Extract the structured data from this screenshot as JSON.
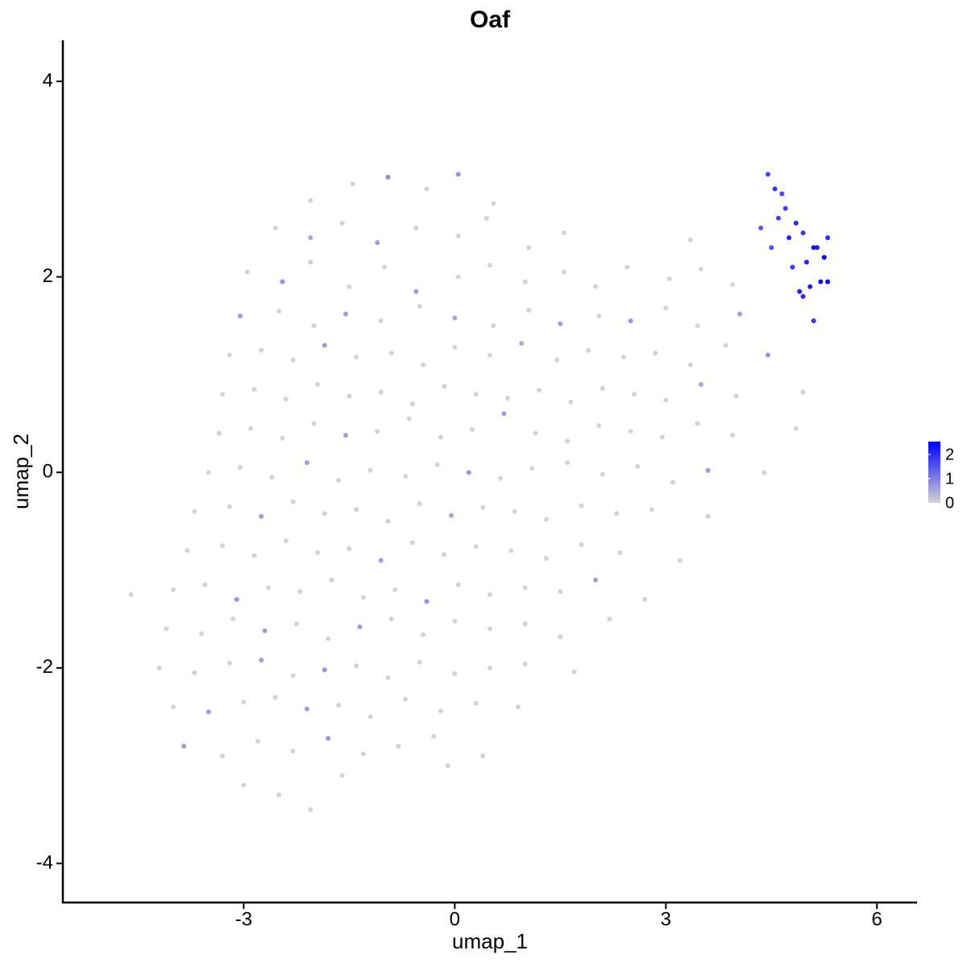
{
  "chart_data": {
    "type": "scatter",
    "title": "Oaf",
    "x_label": "umap_1",
    "y_label": "umap_2",
    "xlim": [
      -5.57,
      6.57
    ],
    "ylim": [
      -4.4,
      4.42
    ],
    "xticks": [
      -3,
      0,
      3,
      6
    ],
    "yticks": [
      -4,
      -2,
      0,
      2,
      4
    ],
    "colors": [
      "#d3d3d3",
      "#0000ff"
    ],
    "color_lim": [
      0,
      2.4
    ],
    "color_ticks": [
      0,
      1,
      2
    ],
    "x": [
      -2.05,
      -1.45,
      -0.95,
      -0.4,
      0.05,
      0.55,
      -2.55,
      -2.05,
      -1.6,
      -1.1,
      -0.55,
      0.05,
      0.45,
      1.05,
      1.55,
      3.35,
      -2.95,
      -2.45,
      -2.05,
      -1.5,
      -1.0,
      -0.55,
      0.05,
      0.5,
      1.0,
      1.55,
      2.0,
      2.45,
      3.05,
      3.5,
      3.95,
      -3.05,
      -2.5,
      -2.0,
      -1.55,
      -1.05,
      -0.5,
      0.0,
      0.55,
      1.05,
      1.5,
      2.05,
      2.5,
      3.0,
      3.45,
      4.05,
      -3.2,
      -2.75,
      -2.3,
      -1.85,
      -1.4,
      -0.9,
      -0.45,
      0.0,
      0.5,
      0.95,
      1.45,
      1.9,
      2.4,
      2.85,
      3.35,
      3.85,
      4.45,
      -3.3,
      -2.85,
      -2.4,
      -1.95,
      -1.5,
      -1.05,
      -0.6,
      -0.15,
      0.3,
      0.75,
      1.2,
      1.65,
      2.1,
      2.55,
      3.0,
      3.5,
      4.0,
      4.95,
      -3.35,
      -2.9,
      -2.45,
      -2.0,
      -1.55,
      -1.1,
      -0.65,
      -0.2,
      0.25,
      0.7,
      1.15,
      1.6,
      2.05,
      2.5,
      2.95,
      3.45,
      3.95,
      4.85,
      -3.5,
      -3.05,
      -2.6,
      -2.1,
      -1.65,
      -1.2,
      -0.7,
      -0.25,
      0.2,
      0.65,
      1.1,
      1.6,
      2.1,
      2.6,
      3.1,
      3.6,
      4.4,
      -3.7,
      -3.2,
      -2.75,
      -2.3,
      -1.85,
      -1.4,
      -0.95,
      -0.5,
      -0.05,
      0.4,
      0.85,
      1.3,
      1.8,
      2.3,
      2.8,
      3.6,
      -3.8,
      -3.3,
      -2.85,
      -2.4,
      -1.95,
      -1.5,
      -1.05,
      -0.6,
      -0.15,
      0.3,
      0.8,
      1.3,
      1.8,
      2.35,
      3.2,
      -4.6,
      -4.0,
      -3.55,
      -3.1,
      -2.65,
      -2.2,
      -1.75,
      -1.3,
      -0.85,
      -0.4,
      0.05,
      0.5,
      1.0,
      1.5,
      2.0,
      2.7,
      -4.1,
      -3.6,
      -3.15,
      -2.7,
      -2.25,
      -1.8,
      -1.35,
      -0.9,
      -0.45,
      0.0,
      0.5,
      1.0,
      1.5,
      2.2,
      -4.2,
      -3.7,
      -3.2,
      -2.75,
      -2.3,
      -1.85,
      -1.4,
      -0.95,
      -0.5,
      0.0,
      0.5,
      1.0,
      1.7,
      -4.0,
      -3.5,
      -3.0,
      -2.55,
      -2.1,
      -1.65,
      -1.2,
      -0.7,
      -0.2,
      0.3,
      0.9,
      -3.85,
      -3.3,
      -2.8,
      -2.3,
      -1.8,
      -1.3,
      -0.8,
      -0.3,
      0.4,
      -3.0,
      -2.5,
      -2.05,
      -1.6,
      -0.1,
      4.45,
      4.55,
      4.7,
      4.85,
      4.6,
      4.75,
      4.95,
      5.1,
      5.25,
      5.3,
      5.2,
      5.05,
      4.9,
      4.95,
      5.1,
      5.3,
      4.5,
      4.35,
      4.8,
      5.0,
      5.15,
      4.65
    ],
    "y": [
      2.78,
      2.95,
      3.02,
      2.9,
      3.05,
      2.75,
      2.5,
      2.4,
      2.55,
      2.35,
      2.5,
      2.42,
      2.6,
      2.3,
      2.45,
      2.38,
      2.05,
      1.95,
      2.15,
      1.9,
      2.1,
      1.85,
      2.0,
      2.12,
      1.95,
      2.05,
      1.9,
      2.1,
      1.98,
      2.08,
      1.92,
      1.6,
      1.65,
      1.5,
      1.62,
      1.55,
      1.7,
      1.58,
      1.5,
      1.66,
      1.52,
      1.6,
      1.55,
      1.68,
      1.5,
      1.62,
      1.2,
      1.25,
      1.15,
      1.3,
      1.18,
      1.22,
      1.1,
      1.28,
      1.2,
      1.32,
      1.15,
      1.25,
      1.18,
      1.22,
      1.1,
      1.3,
      1.2,
      0.8,
      0.85,
      0.75,
      0.9,
      0.78,
      0.82,
      0.7,
      0.88,
      0.8,
      0.76,
      0.84,
      0.72,
      0.86,
      0.8,
      0.74,
      0.9,
      0.78,
      0.82,
      0.4,
      0.45,
      0.35,
      0.5,
      0.38,
      0.42,
      0.55,
      0.36,
      0.44,
      0.6,
      0.4,
      0.32,
      0.48,
      0.42,
      0.36,
      0.5,
      0.38,
      0.45,
      0.0,
      0.05,
      -0.05,
      0.1,
      -0.08,
      0.02,
      -0.04,
      0.08,
      0.0,
      -0.06,
      0.04,
      0.1,
      -0.02,
      0.06,
      -0.1,
      0.02,
      0.0,
      -0.4,
      -0.35,
      -0.45,
      -0.3,
      -0.42,
      -0.38,
      -0.5,
      -0.32,
      -0.44,
      -0.36,
      -0.4,
      -0.48,
      -0.34,
      -0.42,
      -0.38,
      -0.45,
      -0.8,
      -0.75,
      -0.85,
      -0.7,
      -0.82,
      -0.78,
      -0.9,
      -0.72,
      -0.84,
      -0.76,
      -0.8,
      -0.88,
      -0.74,
      -0.82,
      -0.9,
      -1.25,
      -1.2,
      -1.15,
      -1.3,
      -1.18,
      -1.22,
      -1.1,
      -1.28,
      -1.2,
      -1.32,
      -1.15,
      -1.25,
      -1.18,
      -1.22,
      -1.1,
      -1.3,
      -1.6,
      -1.65,
      -1.5,
      -1.62,
      -1.55,
      -1.7,
      -1.58,
      -1.5,
      -1.66,
      -1.52,
      -1.6,
      -1.55,
      -1.68,
      -1.5,
      -2.0,
      -2.05,
      -1.95,
      -1.92,
      -2.08,
      -2.02,
      -1.98,
      -2.1,
      -1.94,
      -2.06,
      -2.0,
      -1.96,
      -2.04,
      -2.4,
      -2.45,
      -2.35,
      -2.3,
      -2.42,
      -2.38,
      -2.5,
      -2.32,
      -2.44,
      -2.36,
      -2.4,
      -2.8,
      -2.9,
      -2.75,
      -2.85,
      -2.72,
      -2.88,
      -2.8,
      -2.7,
      -2.9,
      -3.2,
      -3.3,
      -3.45,
      -3.1,
      -3.0,
      3.05,
      2.9,
      2.7,
      2.55,
      2.6,
      2.4,
      2.45,
      2.3,
      2.2,
      2.4,
      1.95,
      1.9,
      1.85,
      1.8,
      1.55,
      1.95,
      2.3,
      2.5,
      2.1,
      2.15,
      2.3,
      2.85
    ],
    "expression": [
      0,
      0,
      0.8,
      0,
      0.7,
      0,
      0,
      0.5,
      0,
      0.6,
      0,
      0,
      0,
      0,
      0,
      0,
      0,
      0.7,
      0,
      0,
      0,
      0.6,
      0,
      0,
      0,
      0,
      0,
      0,
      0,
      0,
      0,
      0.6,
      0,
      0,
      0.6,
      0,
      0,
      0.5,
      0,
      0,
      0.6,
      0,
      0.7,
      0,
      0,
      0.6,
      0,
      0,
      0,
      0.6,
      0,
      0,
      0,
      0,
      0,
      0.5,
      0,
      0,
      0,
      0,
      0,
      0,
      0.7,
      0,
      0,
      0,
      0,
      0,
      0,
      0,
      0,
      0,
      0,
      0,
      0,
      0,
      0,
      0,
      0.5,
      0,
      0,
      0,
      0,
      0,
      0,
      0.6,
      0,
      0,
      0,
      0,
      0.6,
      0,
      0,
      0,
      0,
      0,
      0,
      0,
      0,
      0,
      0,
      0,
      0.6,
      0,
      0,
      0,
      0,
      0.7,
      0,
      0,
      0,
      0,
      0,
      0,
      0.6,
      0,
      0,
      0,
      0.6,
      0,
      0,
      0,
      0,
      0,
      0.5,
      0,
      0,
      0,
      0,
      0,
      0,
      0,
      0,
      0,
      0,
      0,
      0,
      0,
      0.6,
      0,
      0,
      0,
      0,
      0,
      0,
      0,
      0,
      0,
      0,
      0,
      0.7,
      0,
      0,
      0,
      0,
      0,
      0.7,
      0,
      0,
      0,
      0,
      0.6,
      0,
      0,
      0,
      0,
      0.6,
      0,
      0,
      0.6,
      0,
      0,
      0,
      0,
      0,
      0,
      0,
      0,
      0,
      0,
      0.6,
      0,
      0.7,
      0,
      0,
      0,
      0,
      0,
      0,
      0,
      0,
      0.6,
      0,
      0,
      0.6,
      0,
      0,
      0,
      0,
      0,
      0,
      0.6,
      0,
      0,
      0,
      0.7,
      0,
      0,
      0,
      0,
      0,
      0,
      0,
      0,
      0,
      1.6,
      1.8,
      1.7,
      1.9,
      1.6,
      2.0,
      1.8,
      2.2,
      2.4,
      1.9,
      2.3,
      2.1,
      2.0,
      1.9,
      1.8,
      2.3,
      1.5,
      1.4,
      1.7,
      2.0,
      2.1,
      1.6
    ]
  }
}
